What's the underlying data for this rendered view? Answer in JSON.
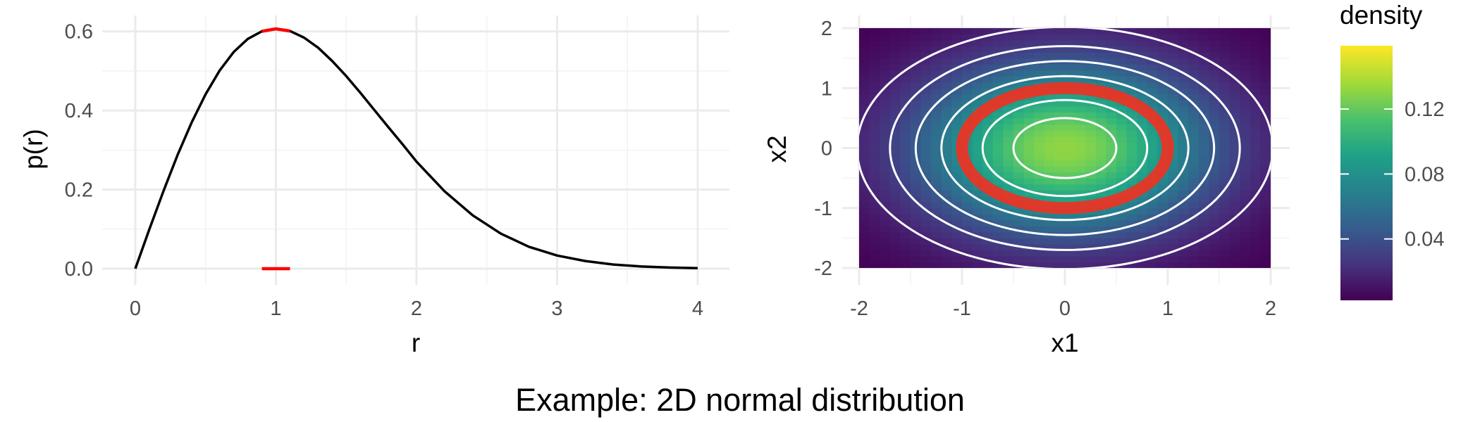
{
  "caption": "Example: 2D normal distribution",
  "chart_data": [
    {
      "type": "line",
      "xlabel": "r",
      "ylabel": "p(r)",
      "xlim": [
        0,
        4
      ],
      "ylim": [
        0,
        0.6065
      ],
      "x_ticks": [
        "0",
        "1",
        "2",
        "3",
        "4"
      ],
      "y_ticks": [
        "0.0",
        "0.2",
        "0.4",
        "0.6"
      ],
      "grid": true,
      "series": [
        {
          "color": "#000000",
          "x": [
            0,
            0.1,
            0.2,
            0.3,
            0.4,
            0.5,
            0.6,
            0.7,
            0.8,
            0.9,
            1.0,
            1.1,
            1.2,
            1.3,
            1.4,
            1.5,
            1.6,
            1.7,
            1.8,
            1.9,
            2.0,
            2.2,
            2.4,
            2.6,
            2.8,
            3.0,
            3.2,
            3.4,
            3.6,
            3.8,
            4.0
          ],
          "y": [
            0,
            0.0995,
            0.196,
            0.2868,
            0.3692,
            0.4412,
            0.5012,
            0.548,
            0.581,
            0.6002,
            0.6065,
            0.601,
            0.5842,
            0.5588,
            0.5253,
            0.487,
            0.445,
            0.4014,
            0.3577,
            0.315,
            0.2707,
            0.1955,
            0.1349,
            0.0885,
            0.0554,
            0.0333,
            0.0193,
            0.0105,
            0.0055,
            0.0028,
            0.0013
          ]
        }
      ],
      "highlights": [
        {
          "color": "#ff0000",
          "x": [
            0.9,
            1.0,
            1.1
          ],
          "y": [
            0.6002,
            0.6065,
            0.601
          ]
        },
        {
          "color": "#ff0000",
          "x": [
            0.9,
            1.1
          ],
          "y": [
            0,
            0
          ]
        }
      ]
    },
    {
      "type": "heatmap",
      "xlabel": "x1",
      "ylabel": "x2",
      "xlim": [
        -2,
        2
      ],
      "ylim": [
        -2,
        2
      ],
      "x_ticks": [
        "-2",
        "-1",
        "0",
        "1",
        "2"
      ],
      "y_ticks": [
        "-2",
        "-1",
        "0",
        "1",
        "2"
      ],
      "colormap": "viridis",
      "legend_title": "density",
      "legend_position": "right",
      "legend_ticks": [
        "0.04",
        "0.08",
        "0.12"
      ],
      "legend_tick_values": [
        0.04,
        0.08,
        0.12
      ],
      "legend_range": [
        0.0022,
        0.159
      ],
      "contour_color": "#ffffff",
      "contour_radii": [
        0.5,
        0.8,
        1.2,
        1.45,
        1.7,
        2.02
      ],
      "highlight_band": {
        "color": "#ff2a1a",
        "r_inner": 0.9,
        "r_outer": 1.1
      }
    }
  ]
}
